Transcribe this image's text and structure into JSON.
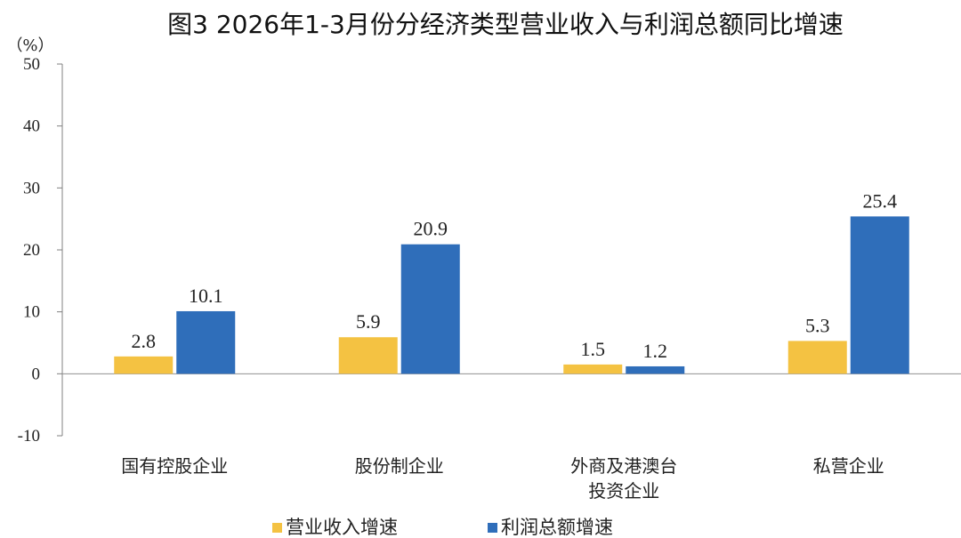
{
  "chart_data": {
    "type": "bar",
    "title": "图3 2026年1-3月份分经济类型营业收入与利润总额同比增速",
    "unit": "（%）",
    "categories": [
      [
        "国有控股企业"
      ],
      [
        "股份制企业"
      ],
      [
        "外商及港澳台",
        "投资企业"
      ],
      [
        "私营企业"
      ]
    ],
    "series": [
      {
        "name": "营业收入增速",
        "color": "#F4C242",
        "values": [
          2.8,
          5.9,
          1.5,
          5.3
        ]
      },
      {
        "name": "利润总额增速",
        "color": "#2F6EBA",
        "values": [
          10.1,
          20.9,
          1.2,
          25.4
        ]
      }
    ],
    "ylim": [
      -10,
      50
    ],
    "yticks": [
      -10,
      0,
      10,
      20,
      30,
      40,
      50
    ],
    "grid": false,
    "legend_position": "bottom-center"
  }
}
